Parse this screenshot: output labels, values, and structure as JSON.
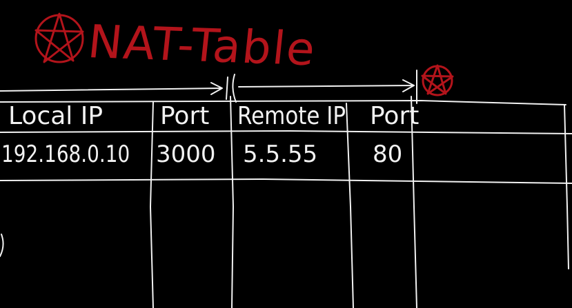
{
  "title": "NAT-Table",
  "colors": {
    "background": "#000000",
    "title_ink": "#b3141b",
    "table_ink": "#f2f2f2"
  },
  "icons": {
    "title_star": "red-star-icon",
    "corner_star": "red-star-icon"
  },
  "table": {
    "columns": [
      "Local IP",
      "Port",
      "Remote IP",
      "Port"
    ],
    "rows": [
      [
        "192.168.0.10",
        "3000",
        "5.5.55",
        "80"
      ]
    ]
  }
}
